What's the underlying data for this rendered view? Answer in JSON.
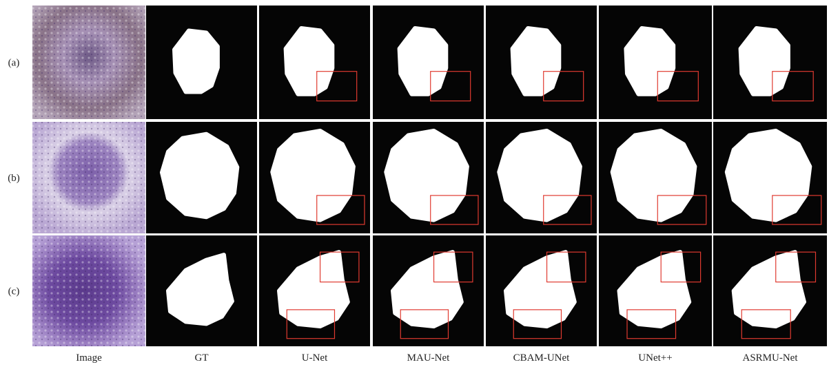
{
  "row_labels": [
    "(a)",
    "(b)",
    "(c)"
  ],
  "column_labels": [
    "Image",
    "GT",
    "U-Net",
    "MAU-Net",
    "CBAM-UNet",
    "UNet++",
    "ASRMU-Net"
  ]
}
